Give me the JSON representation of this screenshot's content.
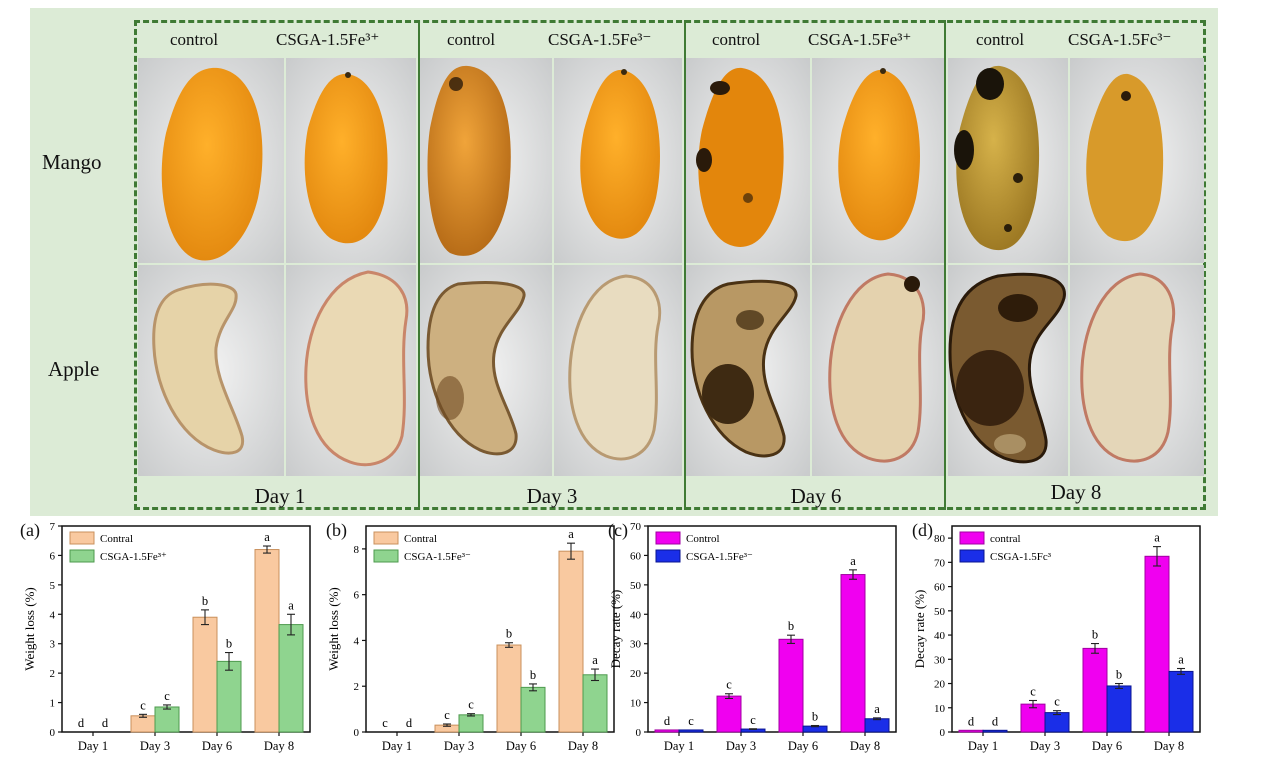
{
  "photo_grid": {
    "row_labels": [
      "Mango",
      "Apple"
    ],
    "columns": [
      {
        "day": "Day 1",
        "control": "control",
        "treated": "CSGA-1.5Fe³⁺"
      },
      {
        "day": "Day 3",
        "control": "control",
        "treated": "CSGA-1.5Fe³⁻"
      },
      {
        "day": "Day 6",
        "control": "control",
        "treated": "CSGA-1.5Fe³⁺"
      },
      {
        "day": "Day 8",
        "control": "control",
        "treated": "CSGA-1.5Fc³⁻"
      }
    ]
  },
  "colors": {
    "control_bar_ab": "#f9c9a0",
    "treated_bar_ab": "#8fd48f",
    "control_bar_cd": "#f000f0",
    "treated_bar_cd": "#1a2ee8",
    "frame": "#3f7a34"
  },
  "chart_data": [
    {
      "panel": "(a)",
      "type": "bar",
      "ylabel": "Weight loss (%)",
      "ylim": [
        0,
        7
      ],
      "yticks": [
        "0",
        "1",
        "2",
        "3",
        "4",
        "5",
        "6",
        "7"
      ],
      "categories": [
        "Day 1",
        "Day 3",
        "Day 6",
        "Day 8"
      ],
      "legend_placement": "top-left",
      "series": [
        {
          "name": "Contral",
          "values": [
            0,
            0.55,
            3.9,
            6.2
          ],
          "errors": [
            0,
            0.05,
            0.25,
            0.12
          ],
          "letters": [
            "d",
            "c",
            "b",
            "a"
          ]
        },
        {
          "name": "CSGA-1.5Fe³⁺",
          "values": [
            0,
            0.85,
            2.4,
            3.65
          ],
          "errors": [
            0,
            0.07,
            0.3,
            0.35
          ],
          "letters": [
            "d",
            "c",
            "b",
            "a"
          ]
        }
      ]
    },
    {
      "panel": "(b)",
      "type": "bar",
      "ylabel": "Weight loss (%)",
      "ylim": [
        0,
        9
      ],
      "yticks": [
        "0",
        "2",
        "4",
        "6",
        "8"
      ],
      "categories": [
        "Day 1",
        "Day 3",
        "Day 6",
        "Day 8"
      ],
      "legend_placement": "top-left",
      "series": [
        {
          "name": "Contral",
          "values": [
            0,
            0.3,
            3.8,
            7.9
          ],
          "errors": [
            0,
            0.05,
            0.1,
            0.35
          ],
          "letters": [
            "c",
            "c",
            "b",
            "a"
          ]
        },
        {
          "name": "CSGA-1.5Fe³⁻",
          "values": [
            0,
            0.75,
            1.95,
            2.5
          ],
          "errors": [
            0,
            0.05,
            0.15,
            0.25
          ],
          "letters": [
            "d",
            "c",
            "b",
            "a"
          ]
        }
      ]
    },
    {
      "panel": "(c)",
      "type": "bar",
      "ylabel": "Decay rate (%)",
      "ylim": [
        0,
        70
      ],
      "yticks": [
        "0",
        "10",
        "20",
        "30",
        "40",
        "50",
        "60",
        "70"
      ],
      "categories": [
        "Day 1",
        "Day 3",
        "Day 6",
        "Day 8"
      ],
      "legend_placement": "top-left",
      "series": [
        {
          "name": "Control",
          "values": [
            0.7,
            12.2,
            31.5,
            53.5
          ],
          "errors": [
            0,
            0.8,
            1.4,
            1.6
          ],
          "letters": [
            "d",
            "c",
            "b",
            "a"
          ]
        },
        {
          "name": "CSGA-1.5Fe³⁻",
          "values": [
            0.7,
            1.0,
            2.0,
            4.5
          ],
          "errors": [
            0,
            0.1,
            0.2,
            0.3
          ],
          "letters": [
            "c",
            "c",
            "b",
            "a"
          ]
        }
      ]
    },
    {
      "panel": "(d)",
      "type": "bar",
      "ylabel": "Decay rate (%)",
      "ylim": [
        0,
        85
      ],
      "yticks": [
        "0",
        "10",
        "20",
        "30",
        "40",
        "50",
        "60",
        "70",
        "80"
      ],
      "categories": [
        "Day 1",
        "Day 3",
        "Day 6",
        "Day 8"
      ],
      "legend_placement": "top-left",
      "series": [
        {
          "name": "contral",
          "values": [
            0.7,
            11.5,
            34.5,
            72.5
          ],
          "errors": [
            0,
            1.5,
            2.0,
            4.0
          ],
          "letters": [
            "d",
            "c",
            "b",
            "a"
          ]
        },
        {
          "name": "CSGA-1.5Fc³",
          "values": [
            0.7,
            8.0,
            19.0,
            25.0
          ],
          "errors": [
            0,
            0.8,
            1.0,
            1.2
          ],
          "letters": [
            "d",
            "c",
            "b",
            "a"
          ]
        }
      ]
    }
  ]
}
